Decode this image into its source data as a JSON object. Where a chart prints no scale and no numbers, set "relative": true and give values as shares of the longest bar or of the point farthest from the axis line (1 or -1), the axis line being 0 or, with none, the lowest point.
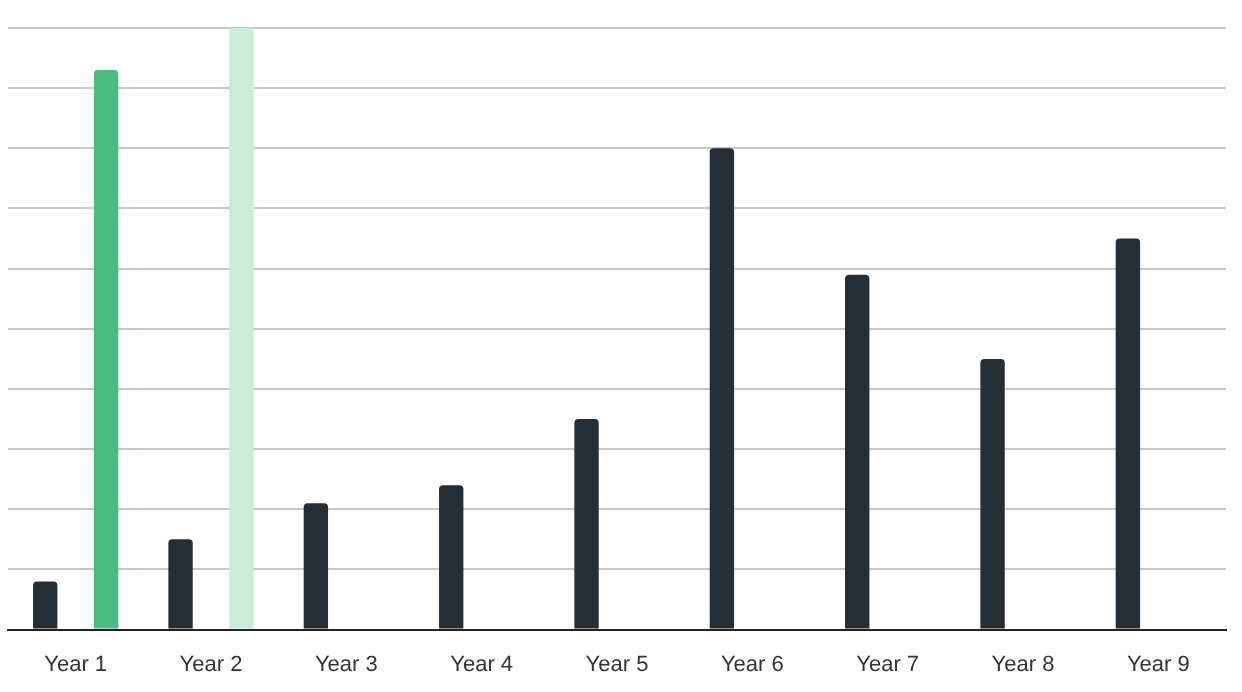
{
  "chart_data": {
    "type": "bar",
    "relative": true,
    "grid": "y",
    "legend": false,
    "categories": [
      "Year 1",
      "Year 2",
      "Year 3",
      "Year 4",
      "Year 5",
      "Year 6",
      "Year 7",
      "Year 8",
      "Year 9"
    ],
    "series": [
      {
        "color": "#252d35",
        "values": [
          0.08,
          0.15,
          0.21,
          0.24,
          0.35,
          0.8,
          0.59,
          0.45,
          0.65
        ]
      },
      {
        "color": "#4cbb7f",
        "colors": [
          "#4cbb7f",
          "#c9ecd6",
          null,
          null,
          null,
          null,
          null,
          null,
          null
        ],
        "values": [
          0.93,
          1,
          null,
          null,
          null,
          null,
          null,
          null,
          null
        ]
      }
    ]
  }
}
